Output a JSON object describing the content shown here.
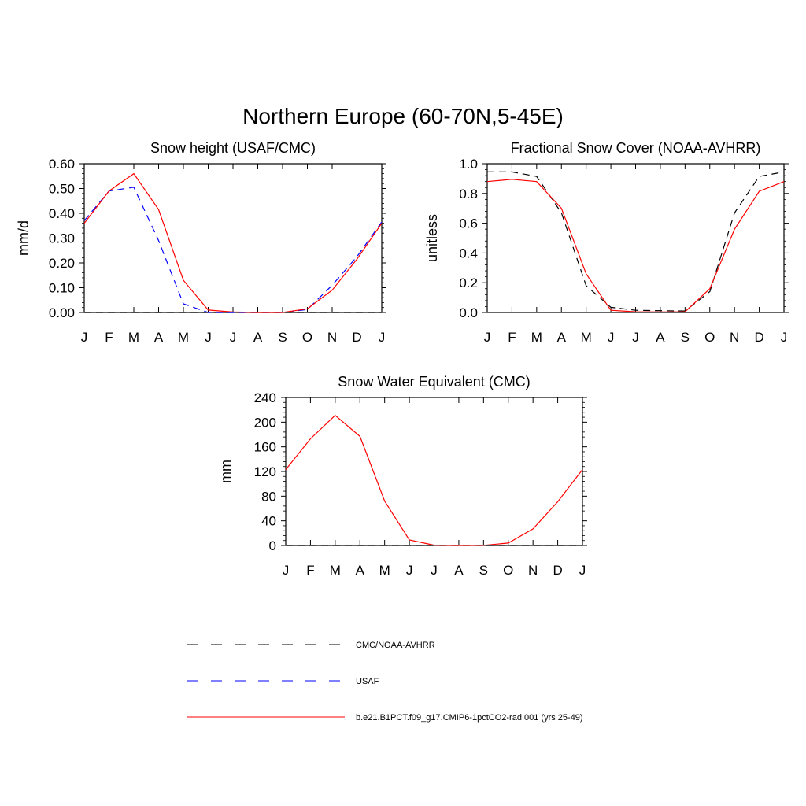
{
  "title": "Northern Europe (60-70N,5-45E)",
  "chart_data": [
    {
      "type": "line",
      "title": "Snow height (USAF/CMC)",
      "ylabel": "mm/d",
      "xlabel": "",
      "categories": [
        "J",
        "F",
        "M",
        "A",
        "M",
        "J",
        "J",
        "A",
        "S",
        "O",
        "N",
        "D",
        "J"
      ],
      "ylim": [
        0,
        0.6
      ],
      "yticks": [
        "0.00",
        "0.10",
        "0.20",
        "0.30",
        "0.40",
        "0.50",
        "0.60"
      ],
      "yticks_values": [
        0,
        0.1,
        0.2,
        0.3,
        0.4,
        0.5,
        0.6
      ],
      "series": [
        {
          "ref": "obs",
          "values": [
            0,
            0,
            0,
            0,
            0,
            0,
            0,
            0,
            0,
            0,
            0,
            0,
            0
          ],
          "color": "#000000",
          "dash": "dashed"
        },
        {
          "ref": "usaf",
          "values": [
            0.37,
            0.49,
            0.505,
            0.29,
            0.035,
            0.0,
            0.0,
            0.0,
            0.0,
            0.012,
            0.11,
            0.225,
            0.365
          ],
          "color": "#0000ff",
          "dash": "dashed"
        },
        {
          "ref": "model",
          "values": [
            0.36,
            0.49,
            0.56,
            0.415,
            0.13,
            0.01,
            0.002,
            0.0,
            0.0,
            0.015,
            0.09,
            0.215,
            0.36
          ],
          "color": "#ff0000",
          "dash": "solid"
        }
      ]
    },
    {
      "type": "line",
      "title": "Fractional Snow Cover (NOAA-AVHRR)",
      "ylabel": "unitless",
      "xlabel": "",
      "categories": [
        "J",
        "F",
        "M",
        "A",
        "M",
        "J",
        "J",
        "A",
        "S",
        "O",
        "N",
        "D",
        "J"
      ],
      "ylim": [
        0,
        1.0
      ],
      "yticks": [
        "0.0",
        "0.2",
        "0.4",
        "0.6",
        "0.8",
        "1.0"
      ],
      "yticks_values": [
        0,
        0.2,
        0.4,
        0.6,
        0.8,
        1.0
      ],
      "series": [
        {
          "ref": "obs",
          "values": [
            0.945,
            0.945,
            0.915,
            0.67,
            0.18,
            0.035,
            0.015,
            0.012,
            0.01,
            0.14,
            0.67,
            0.915,
            0.945
          ],
          "color": "#000000",
          "dash": "dashed"
        },
        {
          "ref": "model",
          "values": [
            0.88,
            0.895,
            0.88,
            0.7,
            0.26,
            0.015,
            0.005,
            0.003,
            0.005,
            0.16,
            0.56,
            0.815,
            0.88
          ],
          "color": "#ff0000",
          "dash": "solid"
        }
      ]
    },
    {
      "type": "line",
      "title": "Snow Water Equivalent (CMC)",
      "ylabel": "mm",
      "xlabel": "",
      "categories": [
        "J",
        "F",
        "M",
        "A",
        "M",
        "J",
        "J",
        "A",
        "S",
        "O",
        "N",
        "D",
        "J"
      ],
      "ylim": [
        0,
        240
      ],
      "yticks": [
        "0",
        "40",
        "80",
        "120",
        "160",
        "200",
        "240"
      ],
      "yticks_values": [
        0,
        40,
        80,
        120,
        160,
        200,
        240
      ],
      "series": [
        {
          "ref": "obs",
          "values": [
            0,
            0,
            0,
            0,
            0,
            0,
            0,
            0,
            0,
            0,
            0,
            0,
            0
          ],
          "color": "#000000",
          "dash": "dashed"
        },
        {
          "ref": "model",
          "values": [
            123,
            173,
            211,
            177,
            72,
            9,
            0.5,
            0,
            0.2,
            4,
            27,
            71,
            123
          ],
          "color": "#ff0000",
          "dash": "solid"
        }
      ]
    }
  ],
  "legend": [
    {
      "ref": "obs",
      "label": "CMC/NOAA-AVHRR",
      "color": "#000000",
      "dash": "dashed"
    },
    {
      "ref": "usaf",
      "label": "USAF",
      "color": "#0000ff",
      "dash": "dashed"
    },
    {
      "ref": "model",
      "label": "b.e21.B1PCT.f09_g17.CMIP6-1pctCO2-rad.001 (yrs 25-49)",
      "color": "#ff0000",
      "dash": "solid"
    }
  ]
}
